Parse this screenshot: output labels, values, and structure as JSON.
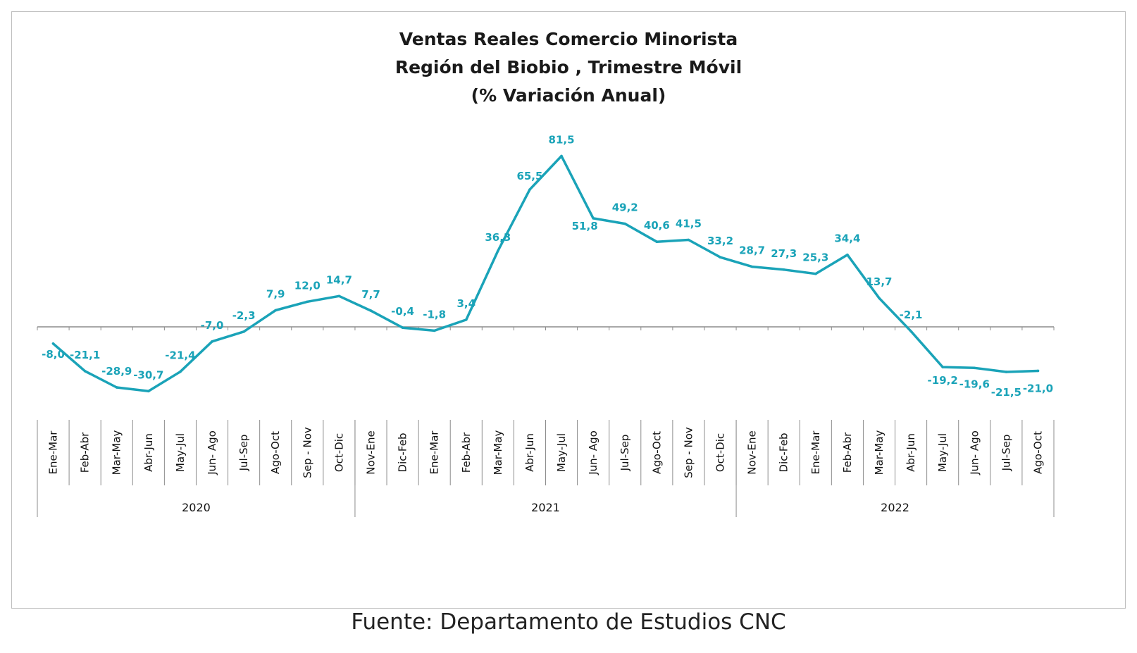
{
  "chart_data": {
    "type": "line",
    "title": [
      "Ventas Reales Comercio Minorista",
      "Región del Biobio , Trimestre Móvil",
      "(% Variación Anual)"
    ],
    "categories": [
      "Ene-Mar",
      "Feb-Abr",
      "Mar-May",
      "Abr-Jun",
      "May-Jul",
      "Jun- Ago",
      "Jul-Sep",
      "Ago-Oct",
      "Sep - Nov",
      "Oct-Dic",
      "Nov-Ene",
      "Dic-Feb",
      "Ene-Mar",
      "Feb-Abr",
      "Mar-May",
      "Abr-Jun",
      "May-Jul",
      "Jun- Ago",
      "Jul-Sep",
      "Ago-Oct",
      "Sep - Nov",
      "Oct-Dic",
      "Nov-Ene",
      "Dic-Feb",
      "Ene-Mar",
      "Feb-Abr",
      "Mar-May",
      "Abr-Jun",
      "May-Jul",
      "Jun- Ago",
      "Jul-Sep",
      "Ago-Oct"
    ],
    "values": [
      -8.0,
      -21.1,
      -28.9,
      -30.7,
      -21.4,
      -7.0,
      -2.3,
      7.9,
      12.0,
      14.7,
      7.7,
      -0.4,
      -1.8,
      3.4,
      36.3,
      65.5,
      81.5,
      51.8,
      49.2,
      40.6,
      41.5,
      33.2,
      28.7,
      27.3,
      25.3,
      34.4,
      13.7,
      -2.1,
      -19.2,
      -19.6,
      -21.5,
      -21.0
    ],
    "data_labels": [
      "-8,0",
      "-21,1",
      "-28,9",
      "-30,7",
      "-21,4",
      "-7,0",
      "-2,3",
      "7,9",
      "12,0",
      "14,7",
      "7,7",
      "-0,4",
      "-1,8",
      "3,4",
      "36,3",
      "65,5",
      "81,5",
      "51,8",
      "49,2",
      "40,6",
      "41,5",
      "33,2",
      "28,7",
      "27,3",
      "25,3",
      "34,4",
      "13,7",
      "-2,1",
      "-19,2",
      "-19,6",
      "-21,5",
      "-21,0"
    ],
    "groups": [
      {
        "label": "2020",
        "start": 0,
        "end": 9
      },
      {
        "label": "2021",
        "start": 10,
        "end": 21
      },
      {
        "label": "2022",
        "start": 22,
        "end": 31
      }
    ],
    "color": "#1aa3b8",
    "grid": false,
    "legend": "none"
  },
  "footer": {
    "source": "Fuente: Departamento de Estudios CNC"
  }
}
